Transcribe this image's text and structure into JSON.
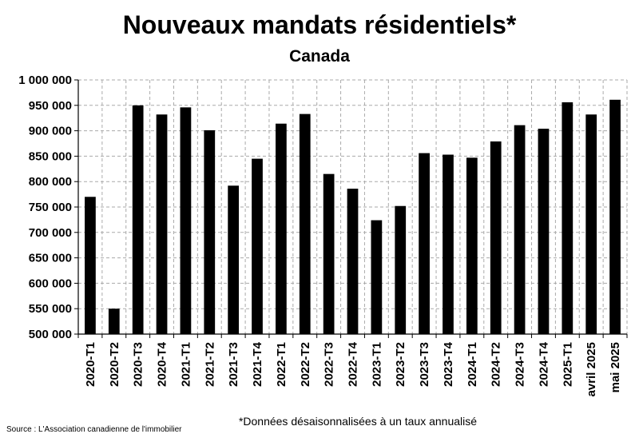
{
  "chart_data": {
    "type": "bar",
    "title": "Nouveaux mandats résidentiels*",
    "subtitle": "Canada",
    "categories": [
      "2020-T1",
      "2020-T2",
      "2020-T3",
      "2020-T4",
      "2021-T1",
      "2021-T2",
      "2021-T3",
      "2021-T4",
      "2022-T1",
      "2022-T2",
      "2022-T3",
      "2022-T4",
      "2023-T1",
      "2023-T2",
      "2023-T3",
      "2023-T4",
      "2024-T1",
      "2024-T2",
      "2024-T3",
      "2024-T4",
      "2025-T1",
      "avril 2025",
      "mai 2025"
    ],
    "values": [
      770000,
      550000,
      950000,
      932000,
      946000,
      901000,
      792000,
      845000,
      914000,
      933000,
      815000,
      786000,
      724000,
      752000,
      856000,
      853000,
      847000,
      879000,
      911000,
      904000,
      956000,
      932000,
      961000
    ],
    "ylim": [
      500000,
      1000000
    ],
    "yticks": [
      500000,
      550000,
      600000,
      650000,
      700000,
      750000,
      800000,
      850000,
      900000,
      950000,
      1000000
    ],
    "ytick_labels": [
      "500 000",
      "550 000",
      "600 000",
      "650 000",
      "700 000",
      "750 000",
      "800 000",
      "850 000",
      "900 000",
      "950 000",
      "1 000 000"
    ],
    "grid": true,
    "bar_color": "#000000",
    "grid_color": "#aaaaaa"
  },
  "source": "Source : L'Association canadienne de l'immobilier",
  "note": "*Données désaisonnalisées à un taux annualisé"
}
